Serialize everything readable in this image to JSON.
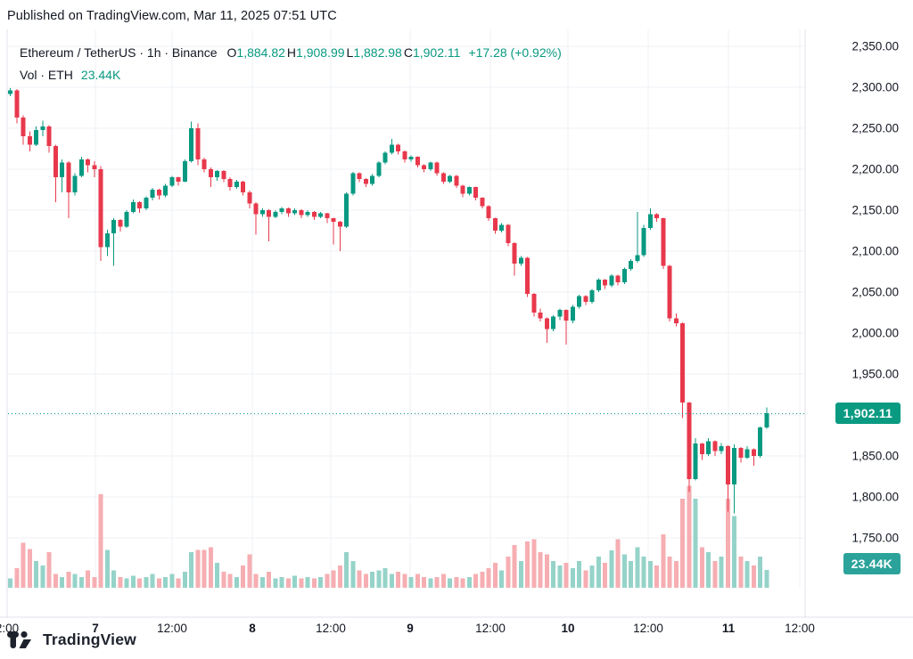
{
  "published": {
    "text": "Published on TradingView.com, Mar 11, 2025 07:51 UTC"
  },
  "legend": {
    "title": "Ethereum / TetherUS · 1h · Binance",
    "ohlc": [
      {
        "label": "O",
        "value": "1,884.82"
      },
      {
        "label": "H",
        "value": "1,908.99"
      },
      {
        "label": "L",
        "value": "1,882.98"
      },
      {
        "label": "C",
        "value": "1,902.11"
      }
    ],
    "change": "+17.28 (+0.92%)",
    "volume_label": "Vol · ETH",
    "volume_value": "23.44K"
  },
  "price_axis": {
    "labels": [
      "2,350.00",
      "2,300.00",
      "2,250.00",
      "2,200.00",
      "2,150.00",
      "2,100.00",
      "2,050.00",
      "2,000.00",
      "1,950.00",
      "1,850.00",
      "1,800.00",
      "1,750.00"
    ],
    "values": [
      2350,
      2300,
      2250,
      2200,
      2150,
      2100,
      2050,
      2000,
      1950,
      1850,
      1800,
      1750
    ],
    "price_badge": "1,902.11",
    "volume_badge": "23.44K"
  },
  "time_axis": [
    {
      "x": 8,
      "label": "2:00",
      "bold": false
    },
    {
      "x": 107,
      "label": "7",
      "bold": true
    },
    {
      "x": 193,
      "label": "12:00",
      "bold": false
    },
    {
      "x": 283,
      "label": "8",
      "bold": true
    },
    {
      "x": 371,
      "label": "12:00",
      "bold": false
    },
    {
      "x": 460,
      "label": "9",
      "bold": true
    },
    {
      "x": 550,
      "label": "12:00",
      "bold": false
    },
    {
      "x": 637,
      "label": "10",
      "bold": true
    },
    {
      "x": 727,
      "label": "12:00",
      "bold": false
    },
    {
      "x": 817,
      "label": "11",
      "bold": true
    },
    {
      "x": 897,
      "label": "12:00",
      "bold": false
    }
  ],
  "footer": {
    "brand": "TradingView"
  },
  "colors": {
    "up": "#089981",
    "down": "#e8384c",
    "vol_up": "#95d3c9",
    "vol_down": "#f6aeb2",
    "grid": "#eff1f4",
    "frame": "#e0e3eb",
    "text": "#131722",
    "accent": "#089981",
    "price_badge_bg": "#0a9a82",
    "volume_badge_bg": "#2ba39a"
  },
  "chart_data": {
    "type": "candlestick",
    "pair": "Ethereum / TetherUS",
    "interval": "1h",
    "exchange": "Binance",
    "last": {
      "open": 1884.82,
      "high": 1908.99,
      "low": 1882.98,
      "close": 1902.11,
      "change": 17.28,
      "change_pct": 0.92
    },
    "current_price": 1902.11,
    "current_volume_k": 23.44,
    "ylim": [
      1730,
      2360
    ],
    "x_ticks": [
      "2:00",
      "7",
      "12:00",
      "8",
      "12:00",
      "9",
      "12:00",
      "10",
      "12:00",
      "11",
      "12:00"
    ],
    "grid": true,
    "candles_ohlc": [
      [
        2292,
        2299,
        2289,
        2296
      ],
      [
        2296,
        2298,
        2256,
        2263
      ],
      [
        2263,
        2266,
        2230,
        2240
      ],
      [
        2240,
        2246,
        2222,
        2230
      ],
      [
        2230,
        2252,
        2228,
        2248
      ],
      [
        2248,
        2259,
        2240,
        2252
      ],
      [
        2252,
        2254,
        2220,
        2228
      ],
      [
        2228,
        2230,
        2160,
        2190
      ],
      [
        2190,
        2212,
        2172,
        2208
      ],
      [
        2208,
        2210,
        2140,
        2172
      ],
      [
        2172,
        2195,
        2168,
        2192
      ],
      [
        2192,
        2215,
        2190,
        2212
      ],
      [
        2212,
        2213,
        2196,
        2205
      ],
      [
        2205,
        2210,
        2190,
        2200
      ],
      [
        2200,
        2204,
        2088,
        2105
      ],
      [
        2105,
        2126,
        2094,
        2122
      ],
      [
        2122,
        2140,
        2082,
        2138
      ],
      [
        2138,
        2139,
        2124,
        2130
      ],
      [
        2130,
        2150,
        2128,
        2148
      ],
      [
        2148,
        2163,
        2146,
        2160
      ],
      [
        2160,
        2161,
        2147,
        2152
      ],
      [
        2152,
        2167,
        2150,
        2165
      ],
      [
        2165,
        2177,
        2162,
        2175
      ],
      [
        2175,
        2176,
        2163,
        2168
      ],
      [
        2168,
        2182,
        2166,
        2180
      ],
      [
        2180,
        2192,
        2178,
        2190
      ],
      [
        2190,
        2191,
        2180,
        2185
      ],
      [
        2185,
        2212,
        2184,
        2210
      ],
      [
        2210,
        2258,
        2208,
        2250
      ],
      [
        2250,
        2256,
        2205,
        2212
      ],
      [
        2212,
        2214,
        2196,
        2200
      ],
      [
        2200,
        2202,
        2178,
        2190
      ],
      [
        2190,
        2199,
        2186,
        2198
      ],
      [
        2198,
        2199,
        2184,
        2188
      ],
      [
        2188,
        2190,
        2174,
        2178
      ],
      [
        2178,
        2187,
        2176,
        2185
      ],
      [
        2185,
        2186,
        2168,
        2172
      ],
      [
        2172,
        2174,
        2152,
        2158
      ],
      [
        2158,
        2160,
        2120,
        2145
      ],
      [
        2145,
        2152,
        2142,
        2150
      ],
      [
        2150,
        2151,
        2112,
        2142
      ],
      [
        2142,
        2150,
        2140,
        2148
      ],
      [
        2148,
        2154,
        2145,
        2152
      ],
      [
        2152,
        2153,
        2142,
        2146
      ],
      [
        2146,
        2152,
        2144,
        2150
      ],
      [
        2150,
        2151,
        2140,
        2144
      ],
      [
        2144,
        2150,
        2142,
        2148
      ],
      [
        2148,
        2149,
        2138,
        2142
      ],
      [
        2142,
        2148,
        2140,
        2146
      ],
      [
        2146,
        2147,
        2134,
        2140
      ],
      [
        2140,
        2141,
        2108,
        2136
      ],
      [
        2136,
        2137,
        2100,
        2130
      ],
      [
        2130,
        2172,
        2128,
        2170
      ],
      [
        2170,
        2197,
        2168,
        2195
      ],
      [
        2195,
        2196,
        2184,
        2188
      ],
      [
        2188,
        2189,
        2178,
        2182
      ],
      [
        2182,
        2194,
        2180,
        2192
      ],
      [
        2192,
        2210,
        2190,
        2208
      ],
      [
        2208,
        2222,
        2206,
        2220
      ],
      [
        2220,
        2237,
        2218,
        2230
      ],
      [
        2230,
        2231,
        2218,
        2222
      ],
      [
        2222,
        2223,
        2208,
        2212
      ],
      [
        2212,
        2217,
        2209,
        2215
      ],
      [
        2215,
        2216,
        2202,
        2205
      ],
      [
        2205,
        2206,
        2196,
        2200
      ],
      [
        2200,
        2209,
        2198,
        2208
      ],
      [
        2208,
        2209,
        2192,
        2195
      ],
      [
        2195,
        2196,
        2182,
        2185
      ],
      [
        2185,
        2193,
        2183,
        2192
      ],
      [
        2192,
        2193,
        2177,
        2180
      ],
      [
        2180,
        2181,
        2166,
        2170
      ],
      [
        2170,
        2179,
        2168,
        2178
      ],
      [
        2178,
        2179,
        2162,
        2165
      ],
      [
        2165,
        2166,
        2152,
        2155
      ],
      [
        2155,
        2156,
        2137,
        2140
      ],
      [
        2140,
        2141,
        2121,
        2125
      ],
      [
        2125,
        2134,
        2123,
        2132
      ],
      [
        2132,
        2133,
        2106,
        2110
      ],
      [
        2110,
        2111,
        2070,
        2085
      ],
      [
        2085,
        2094,
        2082,
        2092
      ],
      [
        2092,
        2093,
        2044,
        2048
      ],
      [
        2048,
        2049,
        2020,
        2025
      ],
      [
        2025,
        2030,
        2014,
        2018
      ],
      [
        2018,
        2019,
        1988,
        2005
      ],
      [
        2005,
        2022,
        2002,
        2020
      ],
      [
        2020,
        2030,
        2016,
        2028
      ],
      [
        2028,
        2029,
        1986,
        2015
      ],
      [
        2015,
        2034,
        2012,
        2032
      ],
      [
        2032,
        2047,
        2030,
        2045
      ],
      [
        2045,
        2046,
        2034,
        2038
      ],
      [
        2038,
        2054,
        2036,
        2052
      ],
      [
        2052,
        2067,
        2050,
        2065
      ],
      [
        2065,
        2066,
        2054,
        2058
      ],
      [
        2058,
        2072,
        2056,
        2070
      ],
      [
        2070,
        2071,
        2058,
        2062
      ],
      [
        2062,
        2080,
        2060,
        2078
      ],
      [
        2078,
        2090,
        2076,
        2088
      ],
      [
        2088,
        2148,
        2086,
        2095
      ],
      [
        2095,
        2132,
        2093,
        2128
      ],
      [
        2128,
        2152,
        2126,
        2145
      ],
      [
        2145,
        2146,
        2136,
        2140
      ],
      [
        2140,
        2141,
        2078,
        2082
      ],
      [
        2082,
        2083,
        2014,
        2018
      ],
      [
        2018,
        2024,
        2008,
        2012
      ],
      [
        2012,
        2013,
        1896,
        1915
      ],
      [
        1915,
        1916,
        1806,
        1822
      ],
      [
        1822,
        1872,
        1820,
        1865
      ],
      [
        1865,
        1866,
        1845,
        1852
      ],
      [
        1852,
        1872,
        1850,
        1868
      ],
      [
        1868,
        1869,
        1850,
        1856
      ],
      [
        1856,
        1866,
        1852,
        1862
      ],
      [
        1862,
        1863,
        1782,
        1815
      ],
      [
        1815,
        1864,
        1780,
        1860
      ],
      [
        1860,
        1861,
        1842,
        1848
      ],
      [
        1848,
        1862,
        1846,
        1858
      ],
      [
        1858,
        1859,
        1838,
        1850
      ],
      [
        1850,
        1886,
        1848,
        1884.82
      ],
      [
        1884.82,
        1908.99,
        1882.98,
        1902.11
      ]
    ],
    "volumes_k": [
      12,
      26,
      59,
      51,
      35,
      29,
      47,
      18,
      14,
      21,
      18,
      14,
      23,
      14,
      123,
      50,
      23,
      14,
      12,
      16,
      12,
      14,
      18,
      12,
      14,
      18,
      12,
      21,
      47,
      50,
      50,
      53,
      33,
      21,
      18,
      14,
      29,
      44,
      18,
      14,
      21,
      12,
      14,
      12,
      16,
      12,
      14,
      12,
      14,
      18,
      23,
      29,
      47,
      35,
      23,
      18,
      21,
      23,
      26,
      18,
      21,
      18,
      14,
      18,
      14,
      12,
      14,
      18,
      12,
      14,
      12,
      14,
      18,
      21,
      26,
      33,
      23,
      41,
      56,
      35,
      61,
      64,
      47,
      44,
      35,
      29,
      33,
      26,
      35,
      23,
      29,
      41,
      33,
      49,
      64,
      44,
      35,
      53,
      41,
      35,
      29,
      70,
      41,
      35,
      117,
      134,
      117,
      53,
      47,
      35,
      41,
      117,
      94,
      41,
      35,
      29,
      41,
      23.44
    ]
  }
}
